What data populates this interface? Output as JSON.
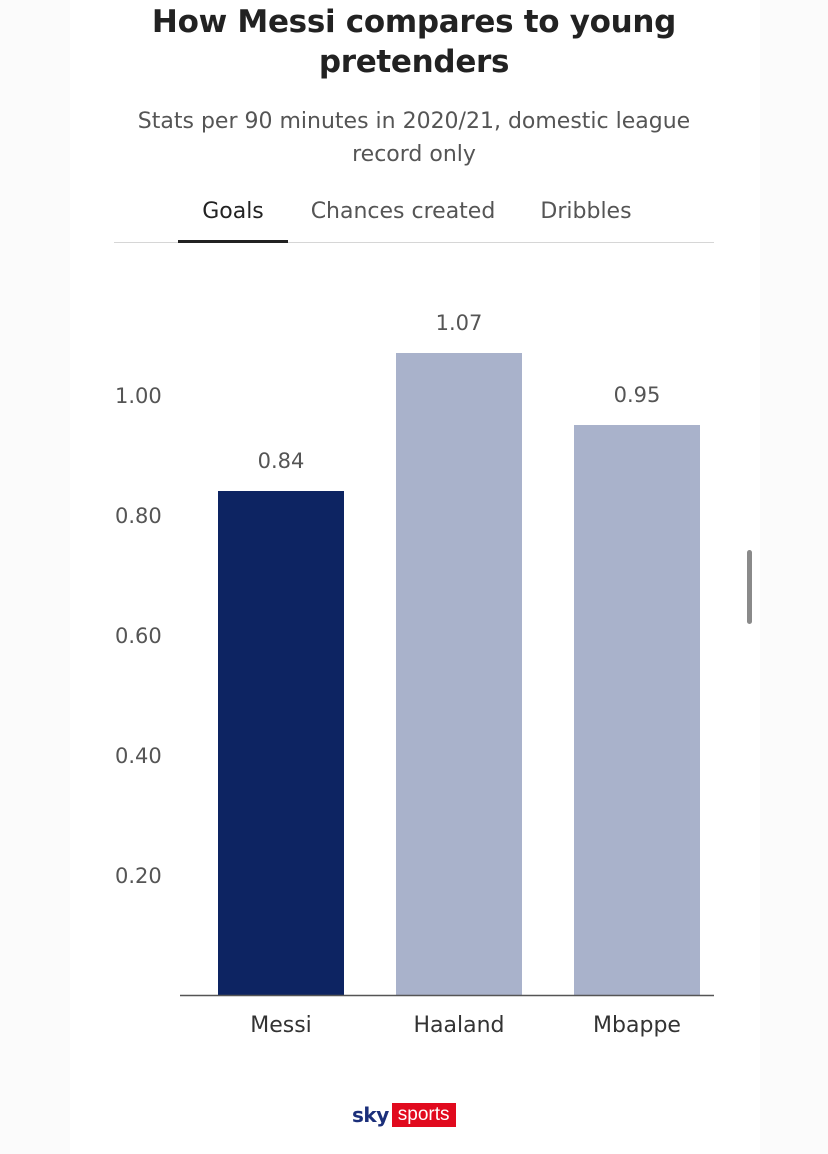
{
  "header": {
    "title_line1": "How Messi compares to young",
    "title_line2": "pretenders",
    "subtitle_line1": "Stats per 90 minutes in 2020/21, domestic league",
    "subtitle_line2": "record only"
  },
  "tabs": [
    {
      "label": "Goals",
      "active": true
    },
    {
      "label": "Chances created",
      "active": false
    },
    {
      "label": "Dribbles",
      "active": false
    }
  ],
  "chart_data": {
    "type": "bar",
    "categories": [
      "Messi",
      "Haaland",
      "Mbappe"
    ],
    "values": [
      0.84,
      1.07,
      0.95
    ],
    "value_labels": [
      "0.84",
      "1.07",
      "0.95"
    ],
    "colors": [
      "#0d2462",
      "#a9b2cb",
      "#a9b2cb"
    ],
    "ylim": [
      0,
      1.2
    ],
    "yticks": [
      0.2,
      0.4,
      0.6,
      0.8,
      1.0
    ],
    "ytick_labels": [
      "0.20",
      "0.40",
      "0.60",
      "0.80",
      "1.00"
    ],
    "grid": false,
    "title": "How Messi compares to young pretenders",
    "subtitle": "Stats per 90 minutes in 2020/21, domestic league record only"
  },
  "branding": {
    "logo_sky": "sky",
    "logo_sports": "sports"
  }
}
